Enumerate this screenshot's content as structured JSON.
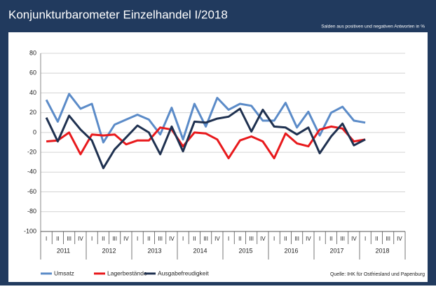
{
  "chart_data": {
    "type": "line",
    "title": "Konjunkturbarometer Einzelhandel I/2018",
    "subtitle": "Salden aus positiven und negativen Antworten in %",
    "source": "Quelle: IHK für Ostfriesland und Papenburg",
    "categories": [
      "I",
      "II",
      "III",
      "IV",
      "I",
      "II",
      "III",
      "IV",
      "I",
      "II",
      "III",
      "IV",
      "I",
      "II",
      "III",
      "IV",
      "I",
      "II",
      "III",
      "IV",
      "I",
      "II",
      "III",
      "IV",
      "I",
      "II",
      "III",
      "IV",
      "I",
      "II",
      "III",
      "IV"
    ],
    "years": [
      "2011",
      "2012",
      "2013",
      "2014",
      "2015",
      "2016",
      "2017",
      "2018"
    ],
    "series": [
      {
        "name": "Umsatz",
        "color": "#5b8bc8",
        "values": [
          33,
          11,
          39,
          24,
          29,
          -10,
          8,
          13,
          18,
          13,
          -2,
          25,
          -7,
          29,
          6,
          35,
          23,
          29,
          27,
          12,
          12,
          30,
          5,
          21,
          -3,
          20,
          26,
          12,
          10,
          null,
          null,
          null
        ]
      },
      {
        "name": "Lagerbestände",
        "color": "#e8191c",
        "values": [
          -9,
          -8,
          0,
          -22,
          -2,
          -3,
          -2,
          -12,
          -8,
          -8,
          5,
          3,
          -14,
          0,
          -1,
          -7,
          -26,
          -8,
          -4,
          -9,
          -26,
          -1,
          -11,
          -14,
          3,
          6,
          4,
          -9,
          -7,
          null,
          null,
          null
        ]
      },
      {
        "name": "Ausgabefreudigkeit",
        "color": "#1f3150",
        "values": [
          15,
          -9,
          17,
          3,
          -8,
          -36,
          -17,
          -5,
          7,
          0,
          -22,
          6,
          -19,
          11,
          10,
          14,
          16,
          24,
          1,
          23,
          6,
          5,
          -2,
          5,
          -21,
          -4,
          9,
          -13,
          -7,
          null,
          null,
          null
        ]
      }
    ],
    "ylim": [
      -100,
      80
    ],
    "yticks": [
      -100,
      -80,
      -60,
      -40,
      -20,
      0,
      20,
      40,
      60,
      80
    ],
    "grid": true
  }
}
